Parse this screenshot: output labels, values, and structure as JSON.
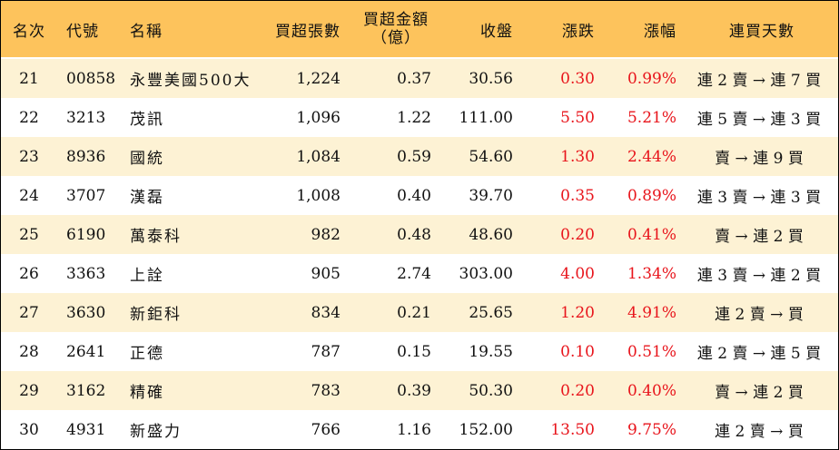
{
  "headers": {
    "rank": "名次",
    "code": "代號",
    "name": "名稱",
    "net_lots": "買超張數",
    "net_amount_line1": "買超金額",
    "net_amount_line2": "（億）",
    "close": "收盤",
    "change": "漲跌",
    "change_pct": "漲幅",
    "streak": "連買天數"
  },
  "rows": [
    {
      "rank": "21",
      "code": "00858",
      "name": "永豐美國500大",
      "net_lots": "1,224",
      "net_amount": "0.37",
      "close": "30.56",
      "change": "0.30",
      "change_pct": "0.99%",
      "streak": "連 2 賣 → 連 7 買"
    },
    {
      "rank": "22",
      "code": "3213",
      "name": "茂訊",
      "net_lots": "1,096",
      "net_amount": "1.22",
      "close": "111.00",
      "change": "5.50",
      "change_pct": "5.21%",
      "streak": "連 5 賣 → 連 3 買"
    },
    {
      "rank": "23",
      "code": "8936",
      "name": "國統",
      "net_lots": "1,084",
      "net_amount": "0.59",
      "close": "54.60",
      "change": "1.30",
      "change_pct": "2.44%",
      "streak": "賣 → 連 9 買"
    },
    {
      "rank": "24",
      "code": "3707",
      "name": "漢磊",
      "net_lots": "1,008",
      "net_amount": "0.40",
      "close": "39.70",
      "change": "0.35",
      "change_pct": "0.89%",
      "streak": "連 3 賣 → 連 3 買"
    },
    {
      "rank": "25",
      "code": "6190",
      "name": "萬泰科",
      "net_lots": "982",
      "net_amount": "0.48",
      "close": "48.60",
      "change": "0.20",
      "change_pct": "0.41%",
      "streak": "賣 → 連 2 買"
    },
    {
      "rank": "26",
      "code": "3363",
      "name": "上詮",
      "net_lots": "905",
      "net_amount": "2.74",
      "close": "303.00",
      "change": "4.00",
      "change_pct": "1.34%",
      "streak": "連 3 賣 → 連 2 買"
    },
    {
      "rank": "27",
      "code": "3630",
      "name": "新鉅科",
      "net_lots": "834",
      "net_amount": "0.21",
      "close": "25.65",
      "change": "1.20",
      "change_pct": "4.91%",
      "streak": "連 2 賣 → 買"
    },
    {
      "rank": "28",
      "code": "2641",
      "name": "正德",
      "net_lots": "787",
      "net_amount": "0.15",
      "close": "19.55",
      "change": "0.10",
      "change_pct": "0.51%",
      "streak": "連 2 賣 → 連 5 買"
    },
    {
      "rank": "29",
      "code": "3162",
      "name": "精確",
      "net_lots": "783",
      "net_amount": "0.39",
      "close": "50.30",
      "change": "0.20",
      "change_pct": "0.40%",
      "streak": "賣 → 連 2 買"
    },
    {
      "rank": "30",
      "code": "4931",
      "name": "新盛力",
      "net_lots": "766",
      "net_amount": "1.16",
      "close": "152.00",
      "change": "13.50",
      "change_pct": "9.75%",
      "streak": "連 2 賣 → 買"
    }
  ],
  "colors": {
    "header_bg": "#fdc35c",
    "stripe_bg": "#fdf2d4",
    "positive_change": "#e8141b"
  }
}
